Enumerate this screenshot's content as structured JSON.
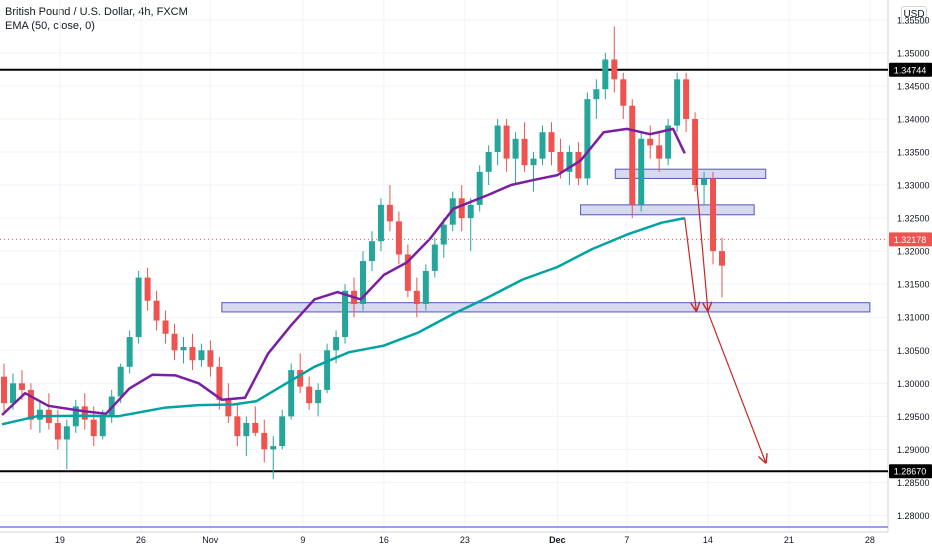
{
  "legend": {
    "title": "British Pound / U.S. Dollar, 4h, FXCM",
    "indicator": "EMA (50, close, 0)"
  },
  "currency_button": "USD",
  "colors": {
    "up": "#26a69a",
    "down": "#ef5350",
    "ema50": "#7b1fa2",
    "ema200": "#00a3a3",
    "zone_fill": "#d6d9f0",
    "zone_stroke": "#5456b8",
    "arrow": "#c62828",
    "hline": "#000000",
    "bottom_line": "#7a7fe6"
  },
  "chart_data": {
    "type": "candlestick",
    "ylim": [
      1.2775,
      1.358
    ],
    "y_ticks": [
      "1.35500",
      "1.35000",
      "1.34500",
      "1.34000",
      "1.33500",
      "1.33000",
      "1.32500",
      "1.32000",
      "1.31500",
      "1.31000",
      "1.30500",
      "1.30000",
      "1.29500",
      "1.29000",
      "1.28500",
      "1.28000"
    ],
    "x_ticks": [
      "19",
      "26",
      "Nov",
      "9",
      "16",
      "23",
      "Dec",
      "7",
      "14",
      "21",
      "28"
    ],
    "price_labels": [
      {
        "text": "1.34744",
        "value": 1.34744,
        "style": "black"
      },
      {
        "text": "1.32178",
        "value": 1.32178,
        "style": "red"
      },
      {
        "text": "1.28670",
        "value": 1.2867,
        "style": "black"
      }
    ],
    "horizontal_lines": [
      1.34744,
      1.2867
    ],
    "zones": [
      {
        "from": "Nov 2",
        "to": "Dec 28",
        "low": 1.3108,
        "high": 1.3122
      },
      {
        "from": "Dec 3",
        "to": "Dec 18",
        "low": 1.3255,
        "high": 1.327
      },
      {
        "from": "Dec 6",
        "to": "Dec 19",
        "low": 1.331,
        "high": 1.3324
      }
    ],
    "arrows": [
      {
        "from_date": "Dec 12",
        "from": 1.325,
        "to_date": "Dec 13",
        "to": 1.311
      },
      {
        "from_date": "Dec 13",
        "from": 1.331,
        "to_date": "Dec 14",
        "to": 1.311
      },
      {
        "from_date": "Dec 14",
        "from": 1.3108,
        "to_date": "Dec 19",
        "to": 1.288
      }
    ],
    "series": [
      {
        "name": "EMA (50, close, 0)",
        "points": [
          [
            "Oct 14",
            1.2952
          ],
          [
            "Oct 16",
            1.2985
          ],
          [
            "Oct 18",
            1.2966
          ],
          [
            "Oct 21",
            1.2958
          ],
          [
            "Oct 23",
            1.2954
          ],
          [
            "Oct 25",
            1.2992
          ],
          [
            "Oct 27",
            1.3013
          ],
          [
            "Oct 29",
            1.3012
          ],
          [
            "Oct 31",
            1.3
          ],
          [
            "Nov 2",
            1.2975
          ],
          [
            "Nov 4",
            1.2978
          ],
          [
            "Nov 6",
            1.3045
          ],
          [
            "Nov 8",
            1.3088
          ],
          [
            "Nov 10",
            1.3127
          ],
          [
            "Nov 12",
            1.3138
          ],
          [
            "Nov 14",
            1.3127
          ],
          [
            "Nov 16",
            1.3164
          ],
          [
            "Nov 18",
            1.3183
          ],
          [
            "Nov 20",
            1.3219
          ],
          [
            "Nov 22",
            1.3264
          ],
          [
            "Nov 25",
            1.3285
          ],
          [
            "Nov 27",
            1.33
          ],
          [
            "Nov 29",
            1.3308
          ],
          [
            "Dec 1",
            1.3315
          ],
          [
            "Dec 3",
            1.3337
          ],
          [
            "Dec 5",
            1.338
          ],
          [
            "Dec 7",
            1.3385
          ],
          [
            "Dec 9",
            1.3377
          ],
          [
            "Dec 11",
            1.3385
          ],
          [
            "Dec 12",
            1.3348
          ]
        ]
      },
      {
        "name": "EMA 200",
        "points": [
          [
            "Oct 14",
            1.2938
          ],
          [
            "Oct 17",
            1.295
          ],
          [
            "Oct 21",
            1.2951
          ],
          [
            "Oct 24",
            1.295
          ],
          [
            "Oct 28",
            1.2963
          ],
          [
            "Oct 31",
            1.2967
          ],
          [
            "Nov 3",
            1.2968
          ],
          [
            "Nov 5",
            1.2973
          ],
          [
            "Nov 7",
            1.2994
          ],
          [
            "Nov 10",
            1.3025
          ],
          [
            "Nov 13",
            1.3047
          ],
          [
            "Nov 16",
            1.3057
          ],
          [
            "Nov 19",
            1.3077
          ],
          [
            "Nov 22",
            1.3105
          ],
          [
            "Nov 25",
            1.313
          ],
          [
            "Nov 28",
            1.3157
          ],
          [
            "Dec 1",
            1.3176
          ],
          [
            "Dec 4",
            1.3203
          ],
          [
            "Dec 7",
            1.3225
          ],
          [
            "Dec 10",
            1.3243
          ],
          [
            "Dec 12",
            1.325
          ]
        ]
      }
    ],
    "candles_ohlc": [
      [
        1.301,
        1.303,
        1.2955,
        1.297
      ],
      [
        1.297,
        1.3015,
        1.296,
        1.3
      ],
      [
        1.3,
        1.302,
        1.2975,
        1.299
      ],
      [
        1.299,
        1.3,
        1.293,
        1.2945
      ],
      [
        1.2945,
        1.2975,
        1.2925,
        1.296
      ],
      [
        1.296,
        1.2985,
        1.293,
        1.294
      ],
      [
        1.294,
        1.296,
        1.29,
        1.2915
      ],
      [
        1.2915,
        1.2945,
        1.287,
        1.2935
      ],
      [
        1.2935,
        1.2975,
        1.2925,
        1.2965
      ],
      [
        1.2965,
        1.2985,
        1.293,
        1.2945
      ],
      [
        1.2945,
        1.2965,
        1.2905,
        1.292
      ],
      [
        1.292,
        1.296,
        1.2915,
        1.295
      ],
      [
        1.295,
        1.299,
        1.294,
        1.298
      ],
      [
        1.298,
        1.303,
        1.297,
        1.3025
      ],
      [
        1.3025,
        1.308,
        1.3015,
        1.307
      ],
      [
        1.307,
        1.317,
        1.306,
        1.316
      ],
      [
        1.316,
        1.3175,
        1.311,
        1.3125
      ],
      [
        1.3125,
        1.314,
        1.308,
        1.3095
      ],
      [
        1.3095,
        1.311,
        1.306,
        1.3075
      ],
      [
        1.3075,
        1.309,
        1.3035,
        1.305
      ],
      [
        1.305,
        1.307,
        1.303,
        1.3055
      ],
      [
        1.3055,
        1.3075,
        1.302,
        1.3035
      ],
      [
        1.3035,
        1.306,
        1.3025,
        1.305
      ],
      [
        1.305,
        1.3065,
        1.301,
        1.3025
      ],
      [
        1.3025,
        1.304,
        1.296,
        1.2975
      ],
      [
        1.2975,
        1.3,
        1.294,
        1.295
      ],
      [
        1.295,
        1.297,
        1.2905,
        1.292
      ],
      [
        1.292,
        1.295,
        1.289,
        1.294
      ],
      [
        1.294,
        1.2965,
        1.292,
        1.2925
      ],
      [
        1.2925,
        1.2945,
        1.288,
        1.29
      ],
      [
        1.29,
        1.292,
        1.2855,
        1.2905
      ],
      [
        1.2905,
        1.296,
        1.29,
        1.295
      ],
      [
        1.295,
        1.303,
        1.2945,
        1.302
      ],
      [
        1.302,
        1.3045,
        1.2985,
        1.2995
      ],
      [
        1.2995,
        1.301,
        1.296,
        1.297
      ],
      [
        1.297,
        1.3,
        1.295,
        1.299
      ],
      [
        1.299,
        1.306,
        1.2985,
        1.305
      ],
      [
        1.305,
        1.308,
        1.303,
        1.307
      ],
      [
        1.307,
        1.315,
        1.306,
        1.314
      ],
      [
        1.314,
        1.316,
        1.31,
        1.312
      ],
      [
        1.312,
        1.32,
        1.311,
        1.3185
      ],
      [
        1.3185,
        1.323,
        1.317,
        1.3215
      ],
      [
        1.3215,
        1.328,
        1.32,
        1.327
      ],
      [
        1.327,
        1.33,
        1.323,
        1.3245
      ],
      [
        1.3245,
        1.326,
        1.318,
        1.3195
      ],
      [
        1.3195,
        1.321,
        1.313,
        1.314
      ],
      [
        1.314,
        1.316,
        1.31,
        1.312
      ],
      [
        1.312,
        1.318,
        1.311,
        1.317
      ],
      [
        1.317,
        1.322,
        1.316,
        1.321
      ],
      [
        1.321,
        1.325,
        1.319,
        1.324
      ],
      [
        1.324,
        1.329,
        1.323,
        1.328
      ],
      [
        1.328,
        1.33,
        1.323,
        1.325
      ],
      [
        1.325,
        1.328,
        1.32,
        1.327
      ],
      [
        1.327,
        1.333,
        1.326,
        1.332
      ],
      [
        1.332,
        1.336,
        1.33,
        1.335
      ],
      [
        1.335,
        1.34,
        1.333,
        1.339
      ],
      [
        1.339,
        1.34,
        1.332,
        1.334
      ],
      [
        1.334,
        1.338,
        1.33,
        1.337
      ],
      [
        1.337,
        1.3395,
        1.332,
        1.333
      ],
      [
        1.333,
        1.335,
        1.329,
        1.334
      ],
      [
        1.334,
        1.339,
        1.333,
        1.338
      ],
      [
        1.338,
        1.3395,
        1.333,
        1.335
      ],
      [
        1.335,
        1.337,
        1.331,
        1.332
      ],
      [
        1.332,
        1.336,
        1.33,
        1.335
      ],
      [
        1.335,
        1.3365,
        1.33,
        1.331
      ],
      [
        1.331,
        1.344,
        1.33,
        1.343
      ],
      [
        1.343,
        1.346,
        1.34,
        1.3445
      ],
      [
        1.3445,
        1.35,
        1.343,
        1.349
      ],
      [
        1.349,
        1.354,
        1.344,
        1.346
      ],
      [
        1.346,
        1.347,
        1.34,
        1.342
      ],
      [
        1.342,
        1.343,
        1.325,
        1.327
      ],
      [
        1.327,
        1.338,
        1.326,
        1.337
      ],
      [
        1.337,
        1.339,
        1.334,
        1.336
      ],
      [
        1.336,
        1.338,
        1.332,
        1.334
      ],
      [
        1.334,
        1.34,
        1.333,
        1.339
      ],
      [
        1.339,
        1.347,
        1.338,
        1.346
      ],
      [
        1.346,
        1.347,
        1.338,
        1.34
      ],
      [
        1.34,
        1.341,
        1.329,
        1.33
      ],
      [
        1.33,
        1.332,
        1.327,
        1.331
      ],
      [
        1.331,
        1.332,
        1.318,
        1.32
      ],
      [
        1.32,
        1.322,
        1.313,
        1.3178
      ]
    ]
  }
}
